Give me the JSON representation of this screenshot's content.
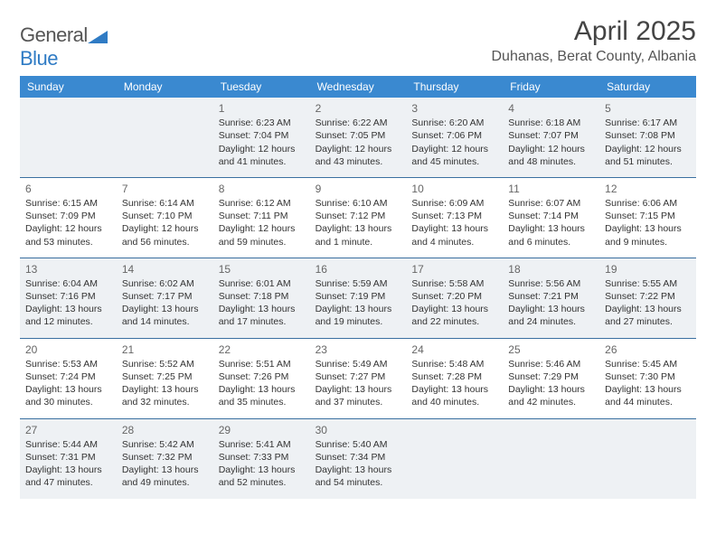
{
  "brand": {
    "name_general": "General",
    "name_blue": "Blue"
  },
  "title": {
    "month": "April 2025",
    "location": "Duhanas, Berat County, Albania"
  },
  "colors": {
    "header_bg": "#3a89d0",
    "header_text": "#ffffff",
    "cell_border": "#3a6fa0",
    "shade_bg": "#eef1f4",
    "text": "#333333",
    "muted": "#666666",
    "brand_gray": "#555555",
    "brand_blue": "#2f7bc4"
  },
  "weekdays": [
    "Sunday",
    "Monday",
    "Tuesday",
    "Wednesday",
    "Thursday",
    "Friday",
    "Saturday"
  ],
  "weeks": [
    [
      {
        "n": "",
        "blank": true
      },
      {
        "n": "",
        "blank": true
      },
      {
        "n": "1",
        "sr": "Sunrise: 6:23 AM",
        "ss": "Sunset: 7:04 PM",
        "d1": "Daylight: 12 hours",
        "d2": "and 41 minutes."
      },
      {
        "n": "2",
        "sr": "Sunrise: 6:22 AM",
        "ss": "Sunset: 7:05 PM",
        "d1": "Daylight: 12 hours",
        "d2": "and 43 minutes."
      },
      {
        "n": "3",
        "sr": "Sunrise: 6:20 AM",
        "ss": "Sunset: 7:06 PM",
        "d1": "Daylight: 12 hours",
        "d2": "and 45 minutes."
      },
      {
        "n": "4",
        "sr": "Sunrise: 6:18 AM",
        "ss": "Sunset: 7:07 PM",
        "d1": "Daylight: 12 hours",
        "d2": "and 48 minutes."
      },
      {
        "n": "5",
        "sr": "Sunrise: 6:17 AM",
        "ss": "Sunset: 7:08 PM",
        "d1": "Daylight: 12 hours",
        "d2": "and 51 minutes."
      }
    ],
    [
      {
        "n": "6",
        "sr": "Sunrise: 6:15 AM",
        "ss": "Sunset: 7:09 PM",
        "d1": "Daylight: 12 hours",
        "d2": "and 53 minutes."
      },
      {
        "n": "7",
        "sr": "Sunrise: 6:14 AM",
        "ss": "Sunset: 7:10 PM",
        "d1": "Daylight: 12 hours",
        "d2": "and 56 minutes."
      },
      {
        "n": "8",
        "sr": "Sunrise: 6:12 AM",
        "ss": "Sunset: 7:11 PM",
        "d1": "Daylight: 12 hours",
        "d2": "and 59 minutes."
      },
      {
        "n": "9",
        "sr": "Sunrise: 6:10 AM",
        "ss": "Sunset: 7:12 PM",
        "d1": "Daylight: 13 hours",
        "d2": "and 1 minute."
      },
      {
        "n": "10",
        "sr": "Sunrise: 6:09 AM",
        "ss": "Sunset: 7:13 PM",
        "d1": "Daylight: 13 hours",
        "d2": "and 4 minutes."
      },
      {
        "n": "11",
        "sr": "Sunrise: 6:07 AM",
        "ss": "Sunset: 7:14 PM",
        "d1": "Daylight: 13 hours",
        "d2": "and 6 minutes."
      },
      {
        "n": "12",
        "sr": "Sunrise: 6:06 AM",
        "ss": "Sunset: 7:15 PM",
        "d1": "Daylight: 13 hours",
        "d2": "and 9 minutes."
      }
    ],
    [
      {
        "n": "13",
        "sr": "Sunrise: 6:04 AM",
        "ss": "Sunset: 7:16 PM",
        "d1": "Daylight: 13 hours",
        "d2": "and 12 minutes."
      },
      {
        "n": "14",
        "sr": "Sunrise: 6:02 AM",
        "ss": "Sunset: 7:17 PM",
        "d1": "Daylight: 13 hours",
        "d2": "and 14 minutes."
      },
      {
        "n": "15",
        "sr": "Sunrise: 6:01 AM",
        "ss": "Sunset: 7:18 PM",
        "d1": "Daylight: 13 hours",
        "d2": "and 17 minutes."
      },
      {
        "n": "16",
        "sr": "Sunrise: 5:59 AM",
        "ss": "Sunset: 7:19 PM",
        "d1": "Daylight: 13 hours",
        "d2": "and 19 minutes."
      },
      {
        "n": "17",
        "sr": "Sunrise: 5:58 AM",
        "ss": "Sunset: 7:20 PM",
        "d1": "Daylight: 13 hours",
        "d2": "and 22 minutes."
      },
      {
        "n": "18",
        "sr": "Sunrise: 5:56 AM",
        "ss": "Sunset: 7:21 PM",
        "d1": "Daylight: 13 hours",
        "d2": "and 24 minutes."
      },
      {
        "n": "19",
        "sr": "Sunrise: 5:55 AM",
        "ss": "Sunset: 7:22 PM",
        "d1": "Daylight: 13 hours",
        "d2": "and 27 minutes."
      }
    ],
    [
      {
        "n": "20",
        "sr": "Sunrise: 5:53 AM",
        "ss": "Sunset: 7:24 PM",
        "d1": "Daylight: 13 hours",
        "d2": "and 30 minutes."
      },
      {
        "n": "21",
        "sr": "Sunrise: 5:52 AM",
        "ss": "Sunset: 7:25 PM",
        "d1": "Daylight: 13 hours",
        "d2": "and 32 minutes."
      },
      {
        "n": "22",
        "sr": "Sunrise: 5:51 AM",
        "ss": "Sunset: 7:26 PM",
        "d1": "Daylight: 13 hours",
        "d2": "and 35 minutes."
      },
      {
        "n": "23",
        "sr": "Sunrise: 5:49 AM",
        "ss": "Sunset: 7:27 PM",
        "d1": "Daylight: 13 hours",
        "d2": "and 37 minutes."
      },
      {
        "n": "24",
        "sr": "Sunrise: 5:48 AM",
        "ss": "Sunset: 7:28 PM",
        "d1": "Daylight: 13 hours",
        "d2": "and 40 minutes."
      },
      {
        "n": "25",
        "sr": "Sunrise: 5:46 AM",
        "ss": "Sunset: 7:29 PM",
        "d1": "Daylight: 13 hours",
        "d2": "and 42 minutes."
      },
      {
        "n": "26",
        "sr": "Sunrise: 5:45 AM",
        "ss": "Sunset: 7:30 PM",
        "d1": "Daylight: 13 hours",
        "d2": "and 44 minutes."
      }
    ],
    [
      {
        "n": "27",
        "sr": "Sunrise: 5:44 AM",
        "ss": "Sunset: 7:31 PM",
        "d1": "Daylight: 13 hours",
        "d2": "and 47 minutes."
      },
      {
        "n": "28",
        "sr": "Sunrise: 5:42 AM",
        "ss": "Sunset: 7:32 PM",
        "d1": "Daylight: 13 hours",
        "d2": "and 49 minutes."
      },
      {
        "n": "29",
        "sr": "Sunrise: 5:41 AM",
        "ss": "Sunset: 7:33 PM",
        "d1": "Daylight: 13 hours",
        "d2": "and 52 minutes."
      },
      {
        "n": "30",
        "sr": "Sunrise: 5:40 AM",
        "ss": "Sunset: 7:34 PM",
        "d1": "Daylight: 13 hours",
        "d2": "and 54 minutes."
      },
      {
        "n": "",
        "blank": true
      },
      {
        "n": "",
        "blank": true
      },
      {
        "n": "",
        "blank": true
      }
    ]
  ],
  "shaded_weeks": [
    0,
    2,
    4
  ]
}
